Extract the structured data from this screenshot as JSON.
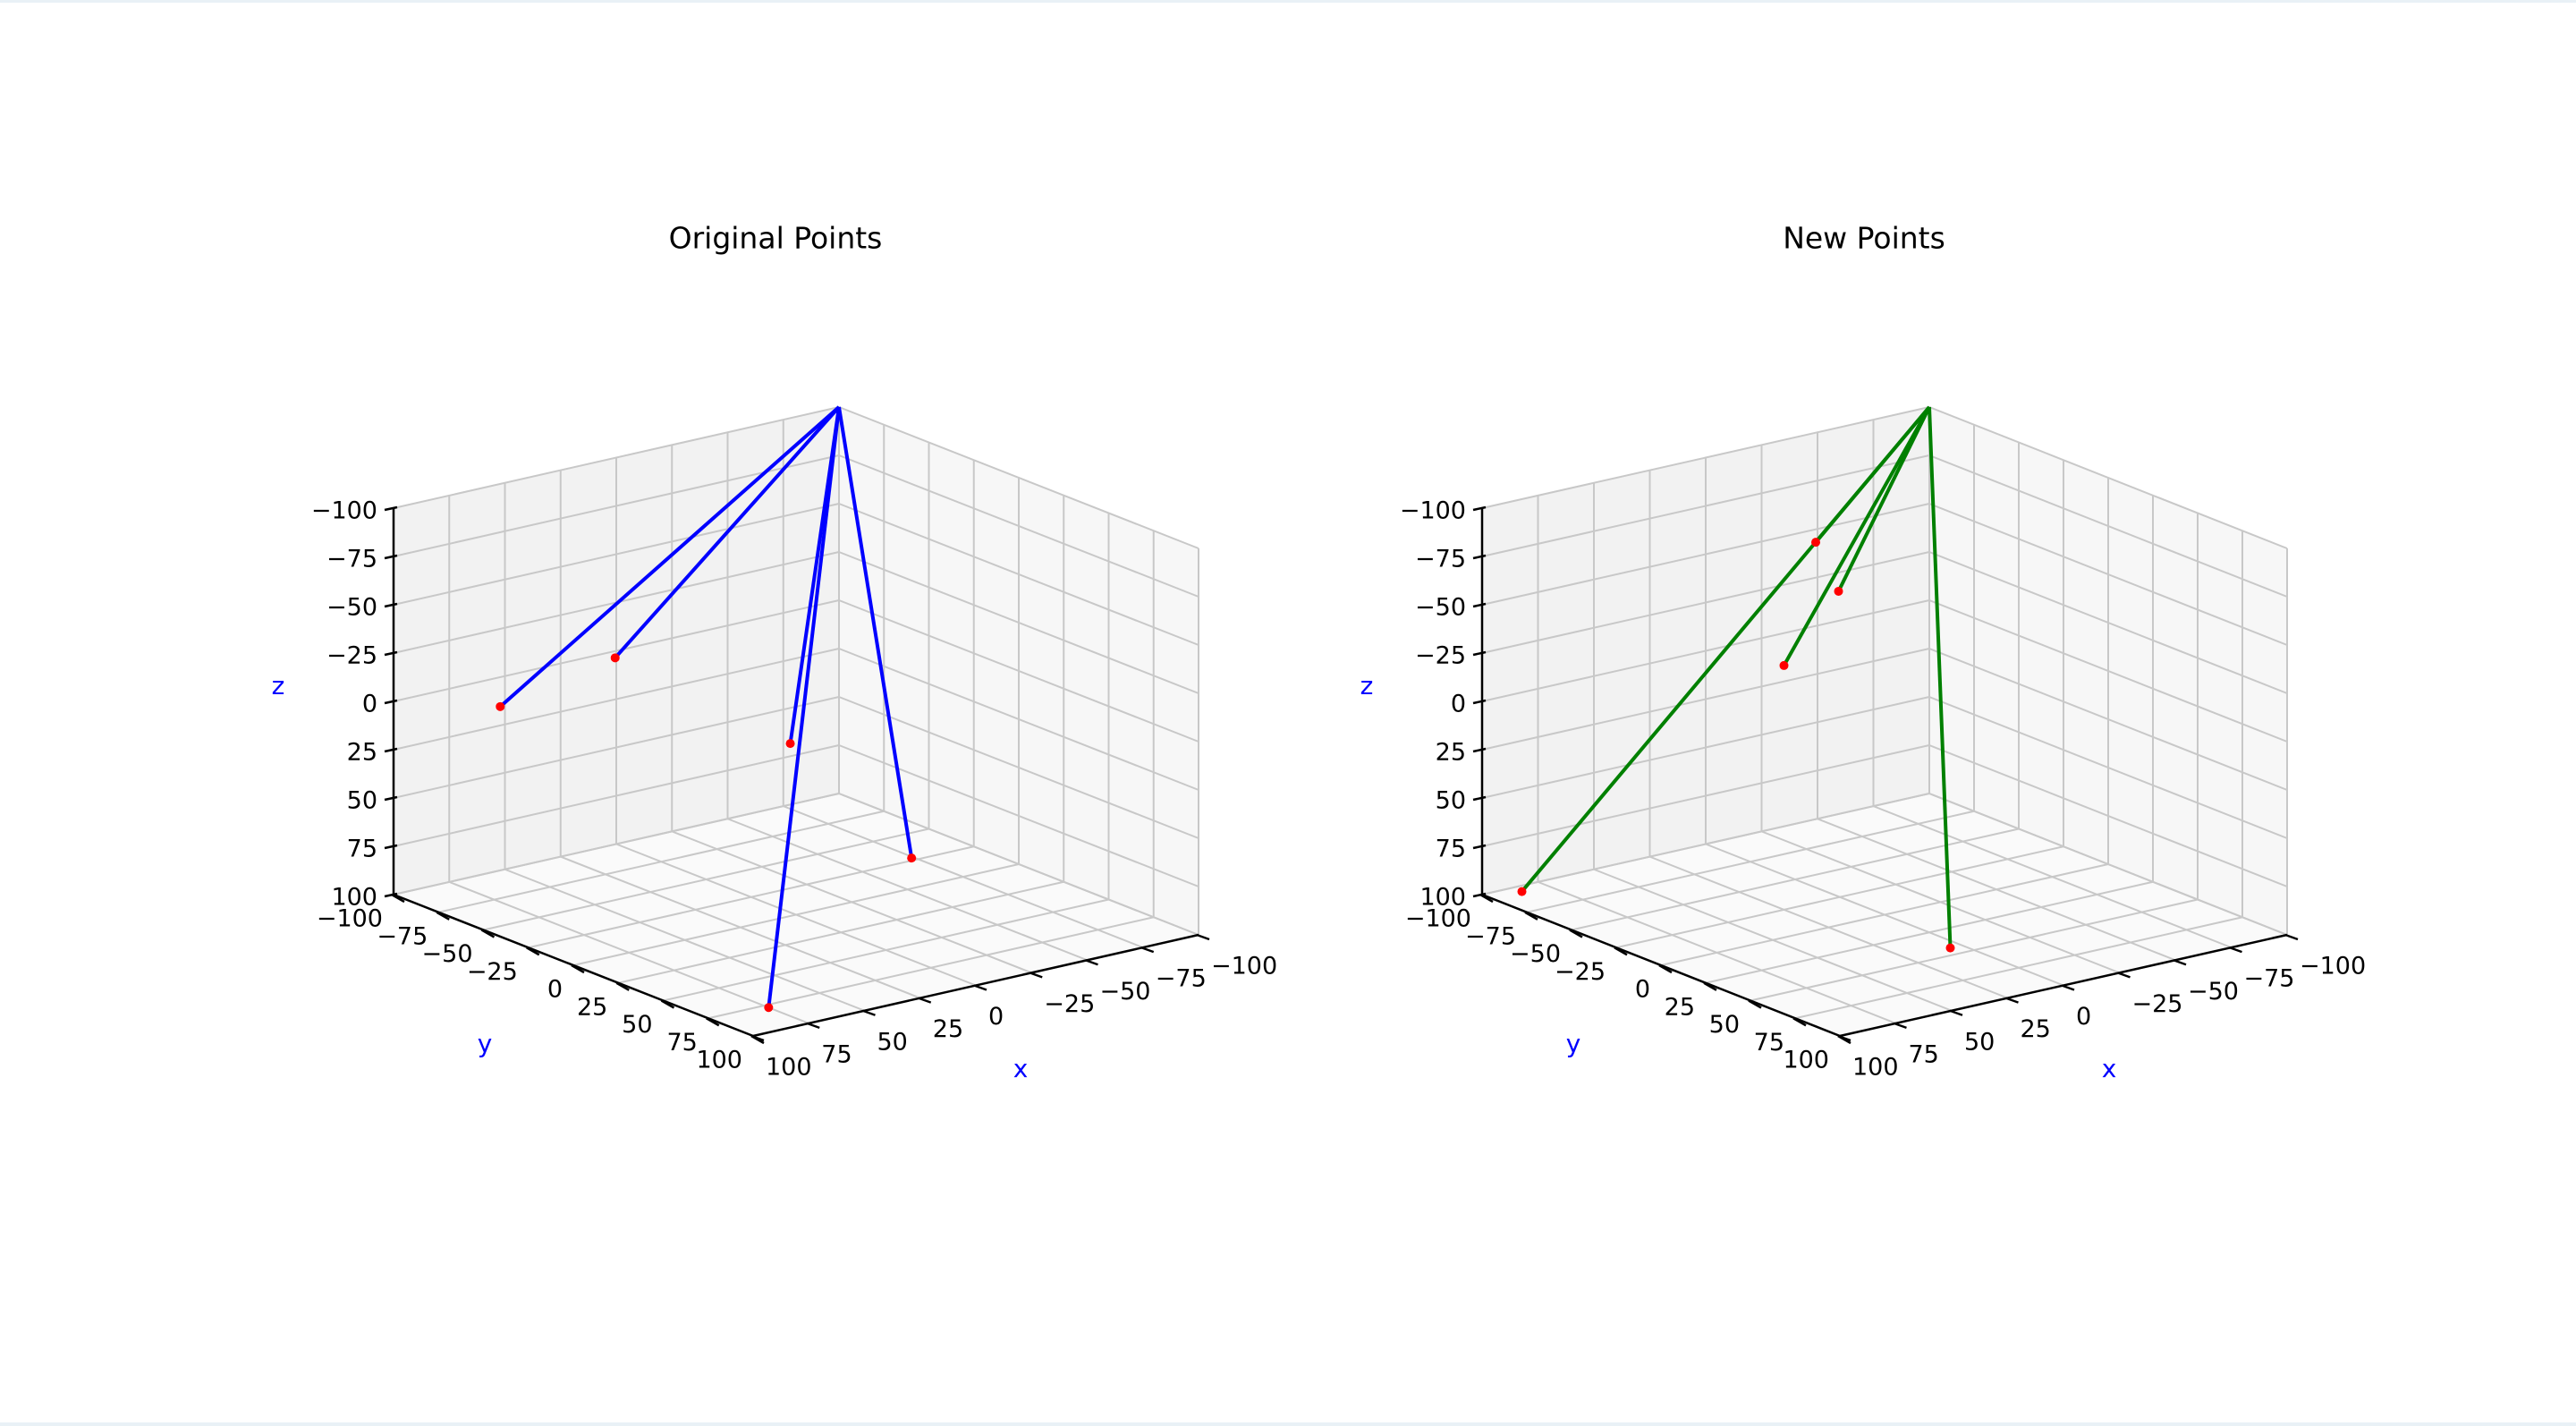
{
  "colors": {
    "axis_label": "#0000ff",
    "point": "#ff0000",
    "pane_back": "#f2f2f2",
    "pane_side": "#f7f7f7",
    "pane_floor": "#fafafa",
    "grid": "#c8c8c8"
  },
  "chart_data": [
    {
      "type": "3d-line",
      "title": "Original Points",
      "xlabel": "x",
      "ylabel": "y",
      "zlabel": "z",
      "xlim": [
        -100,
        100
      ],
      "ylim": [
        -100,
        100
      ],
      "zlim": [
        -100,
        100
      ],
      "z_inverted": true,
      "grid": true,
      "ticks": [
        "−100",
        "−75",
        "−50",
        "−25",
        "0",
        "25",
        "50",
        "75",
        "100"
      ],
      "line_color": "#0000ff",
      "origin": [
        -100,
        -100,
        -100
      ],
      "points": [
        [
          26,
          29,
          -6
        ],
        [
          86,
          -58,
          -9
        ],
        [
          11,
          -87,
          -4
        ],
        [
          24,
          94,
          30
        ],
        [
          89,
          95,
          90
        ]
      ]
    },
    {
      "type": "3d-line",
      "title": "New Points",
      "xlabel": "x",
      "ylabel": "y",
      "zlabel": "z",
      "xlim": [
        -100,
        100
      ],
      "ylim": [
        -100,
        100
      ],
      "zlim": [
        -100,
        100
      ],
      "z_inverted": true,
      "grid": true,
      "ticks": [
        "−100",
        "−75",
        "−50",
        "−25",
        "0",
        "25",
        "50",
        "75",
        "100"
      ],
      "line_color": "#008000",
      "origin": [
        -100,
        -100,
        -100
      ],
      "points": [
        [
          -26,
          -71,
          -60
        ],
        [
          -25,
          -57,
          -40
        ],
        [
          5,
          -50,
          -12
        ],
        [
          33,
          78,
          80
        ],
        [
          99,
          -79,
          91
        ]
      ]
    }
  ]
}
